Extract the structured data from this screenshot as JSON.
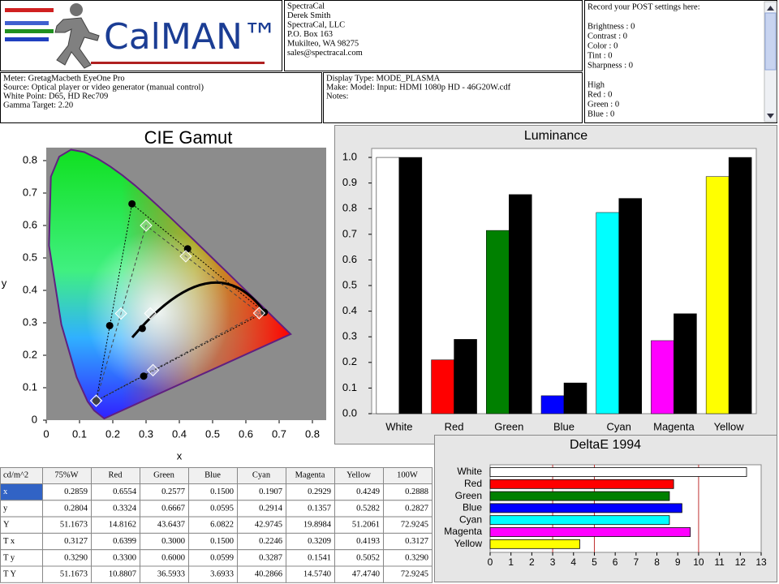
{
  "header": {
    "logo": "CalMAN™",
    "contact": [
      "SpectraCal",
      "Derek Smith",
      "SpectraCal, LLC",
      "P.O. Box 163",
      "Mukilteo, WA 98275",
      "sales@spectracal.com"
    ],
    "post_title": "Record your POST settings here:",
    "post_settings": [
      "Brightness  : 0",
      "Contrast    : 0",
      "Color          : 0",
      "Tint           : 0",
      "Sharpness : 0"
    ],
    "post_high_title": "High",
    "post_high": [
      "Red     : 0",
      "Green : 0",
      "Blue    : 0"
    ],
    "meter": [
      "Meter: GretagMacbeth EyeOne Pro",
      "Source: Optical player or video generator (manual control)",
      "White Point: D65, HD Rec709",
      "Gamma Target: 2.20"
    ],
    "display": [
      "Display Type: MODE_PLASMA",
      "Make: Model: Input: HDMI 1080p HD     -     46G20W.cdf",
      "Notes:"
    ]
  },
  "chart_data": [
    {
      "type": "scatter",
      "title": "CIE Gamut",
      "x_label": "x",
      "y_label": "y",
      "xlim": [
        0,
        0.84
      ],
      "ylim": [
        0,
        0.84
      ],
      "xticks": [
        0,
        0.1,
        0.2,
        0.3,
        0.4,
        0.5,
        0.6,
        0.7,
        0.8
      ],
      "yticks": [
        0,
        0.1,
        0.2,
        0.3,
        0.4,
        0.5,
        0.6,
        0.7,
        0.8
      ],
      "series": [
        {
          "marker": "circle",
          "color": "#000000",
          "x": [
            0.6554,
            0.2577,
            0.15,
            0.1907,
            0.2929,
            0.4249,
            0.2888
          ],
          "y": [
            0.3324,
            0.6667,
            0.0595,
            0.2914,
            0.1357,
            0.5282,
            0.2827
          ]
        },
        {
          "marker": "diamond",
          "color": "#ffffff",
          "x": [
            0.6399,
            0.3,
            0.15,
            0.2246,
            0.3209,
            0.4193,
            0.3127
          ],
          "y": [
            0.33,
            0.6,
            0.0599,
            0.3287,
            0.1541,
            0.5052,
            0.329
          ]
        }
      ]
    },
    {
      "type": "bar",
      "title": "Luminance",
      "categories": [
        "White",
        "Red",
        "Green",
        "Blue",
        "Cyan",
        "Magenta",
        "Yellow"
      ],
      "ylim": [
        0,
        1.035
      ],
      "yticks": [
        {
          "value": 0,
          "label": "0.0"
        },
        0.1,
        0.2,
        0.3,
        0.4,
        0.5,
        0.6,
        0.7,
        0.8,
        0.9,
        {
          "value": 1,
          "label": "1.0"
        }
      ],
      "grid": false,
      "series": [
        {
          "colors": [
            "#ffffff",
            "#ff0000",
            "#008000",
            "#0000ff",
            "#00ffff",
            "#ff00ff",
            "#ffff00"
          ],
          "values": [
            1,
            0.21,
            0.715,
            0.07,
            0.785,
            0.285,
            0.925
          ]
        },
        {
          "color": "#000000",
          "values": [
            1,
            0.29,
            0.855,
            0.12,
            0.84,
            0.39,
            1
          ]
        }
      ]
    },
    {
      "type": "barh",
      "title": "DeltaE 1994",
      "categories": [
        "White",
        "Red",
        "Green",
        "Blue",
        "Cyan",
        "Magenta",
        "Yellow"
      ],
      "values": [
        12.3,
        8.8,
        8.6,
        9.2,
        8.6,
        9.6,
        4.3
      ],
      "colors": [
        "#ffffff",
        "#ff0000",
        "#008000",
        "#0000ff",
        "#00ffff",
        "#ff00ff",
        "#ffff00"
      ],
      "xlim": [
        0,
        13
      ],
      "xticks": [
        0,
        1,
        2,
        3,
        4,
        5,
        6,
        7,
        8,
        9,
        10,
        11,
        12,
        13
      ],
      "reference_lines": [
        3,
        5,
        10
      ],
      "reference_color": "#c03030"
    }
  ],
  "table": {
    "header": [
      "cd/m^2",
      "75%W",
      "Red",
      "Green",
      "Blue",
      "Cyan",
      "Magenta",
      "Yellow",
      "100W"
    ],
    "rows": [
      [
        "x",
        "0.2859",
        "0.6554",
        "0.2577",
        "0.1500",
        "0.1907",
        "0.2929",
        "0.4249",
        "0.2888"
      ],
      [
        "y",
        "0.2804",
        "0.3324",
        "0.6667",
        "0.0595",
        "0.2914",
        "0.1357",
        "0.5282",
        "0.2827"
      ],
      [
        "Y",
        "51.1673",
        "14.8162",
        "43.6437",
        "6.0822",
        "42.9745",
        "19.8984",
        "51.2061",
        "72.9245"
      ],
      [
        "T x",
        "0.3127",
        "0.6399",
        "0.3000",
        "0.1500",
        "0.2246",
        "0.3209",
        "0.4193",
        "0.3127"
      ],
      [
        "T y",
        "0.3290",
        "0.3300",
        "0.6000",
        "0.0599",
        "0.3287",
        "0.1541",
        "0.5052",
        "0.3290"
      ],
      [
        "T Y",
        "51.1673",
        "10.8807",
        "36.5933",
        "3.6933",
        "40.2866",
        "14.5740",
        "47.4740",
        "72.9245"
      ]
    ]
  }
}
